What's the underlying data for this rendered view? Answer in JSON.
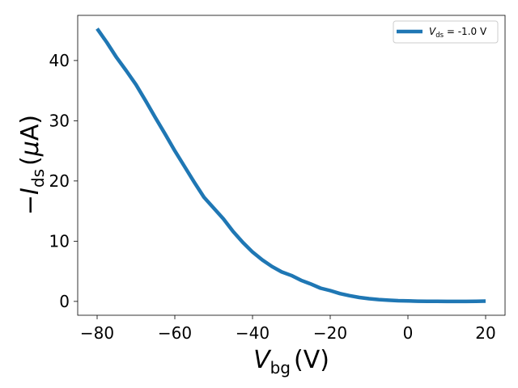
{
  "chart_data": {
    "type": "line",
    "xlabel": {
      "main": "V",
      "sub": "bg",
      "unit": "(V)"
    },
    "ylabel": {
      "prefix": "−",
      "main": "I",
      "sub": "ds",
      "unit_open": "(",
      "unit_mu": "μ",
      "unit_rest": "A)"
    },
    "xlim": [
      -85,
      25
    ],
    "ylim": [
      -2.3,
      47.5
    ],
    "xticks": [
      -80,
      -60,
      -40,
      -20,
      0,
      20
    ],
    "xtick_labels": [
      "−80",
      "−60",
      "−40",
      "−20",
      "0",
      "20"
    ],
    "yticks": [
      0,
      10,
      20,
      30,
      40
    ],
    "ytick_labels": [
      "0",
      "10",
      "20",
      "30",
      "40"
    ],
    "grid": false,
    "legend_position": "top-right",
    "colors": {
      "line": "#1f77b4"
    },
    "series": [
      {
        "name": "V_ds = -1.0 V",
        "legend": {
          "main": "V",
          "sub": "ds",
          "rest": " = -1.0 V"
        },
        "x": [
          -80,
          -77.5,
          -75,
          -72.5,
          -70,
          -67.5,
          -65,
          -62.5,
          -60,
          -57.5,
          -55,
          -52.5,
          -50,
          -47.5,
          -45,
          -42.5,
          -40,
          -37.5,
          -35,
          -32.5,
          -30,
          -27.5,
          -25,
          -22.5,
          -20,
          -17.5,
          -15,
          -12.5,
          -10,
          -7.5,
          -5,
          -2.5,
          0,
          2.5,
          5,
          7.5,
          10,
          12.5,
          15,
          17.5,
          20
        ],
        "y": [
          45.3,
          43.0,
          40.5,
          38.3,
          36.0,
          33.3,
          30.5,
          27.8,
          25.0,
          22.4,
          19.8,
          17.3,
          15.5,
          13.7,
          11.6,
          9.8,
          8.2,
          6.9,
          5.8,
          4.9,
          4.3,
          3.5,
          2.9,
          2.2,
          1.8,
          1.3,
          0.95,
          0.65,
          0.45,
          0.3,
          0.2,
          0.12,
          0.08,
          0.04,
          0.02,
          0.01,
          0.0,
          0.0,
          0.0,
          0.02,
          0.05
        ]
      }
    ]
  }
}
